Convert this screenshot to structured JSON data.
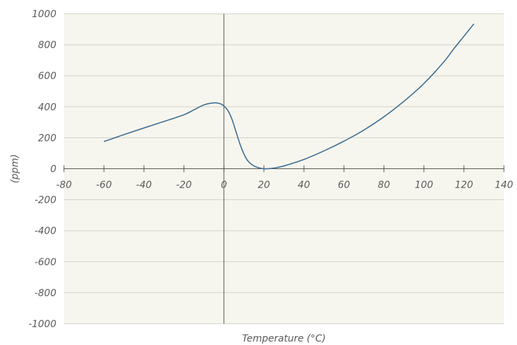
{
  "chart_data": {
    "type": "line",
    "title": "",
    "xlabel": "Temperature (°C)",
    "ylabel": "(ppm)",
    "xlim": [
      -80,
      140
    ],
    "ylim": [
      -1000,
      1000
    ],
    "xticks": [
      -80,
      -60,
      -40,
      -20,
      0,
      20,
      40,
      60,
      80,
      100,
      120,
      140
    ],
    "yticks": [
      1000,
      800,
      600,
      400,
      200,
      0,
      -200,
      -400,
      -600,
      -800,
      -1000
    ],
    "xtick_labels": [
      "-80",
      "-60",
      "-40",
      "-20",
      "0",
      "20",
      "40",
      "60",
      "80",
      "100",
      "120",
      "140"
    ],
    "ytick_labels": [
      "1000",
      "800",
      "600",
      "400",
      "200",
      "0",
      "-200",
      "-400",
      "-600",
      "-800",
      "-1000"
    ],
    "grid": "horizontal",
    "colors": {
      "background": "#f7f6ee",
      "grid": "#d2d2c8",
      "axis": "#555555",
      "line": "#3d6e94"
    },
    "series": [
      {
        "x": [
          -60,
          -50,
          -40,
          -30,
          -20,
          -15,
          -10,
          -5,
          -2,
          0,
          2,
          4,
          6,
          8,
          10,
          12,
          15,
          18,
          20,
          22,
          25,
          30,
          40,
          50,
          60,
          70,
          80,
          90,
          100,
          110,
          115,
          120,
          125
        ],
        "values": [
          175,
          220,
          263,
          305,
          348,
          380,
          412,
          425,
          420,
          405,
          375,
          320,
          240,
          160,
          95,
          50,
          18,
          4,
          0,
          0,
          4,
          18,
          60,
          115,
          178,
          250,
          335,
          435,
          550,
          690,
          775,
          855,
          935
        ]
      }
    ]
  }
}
